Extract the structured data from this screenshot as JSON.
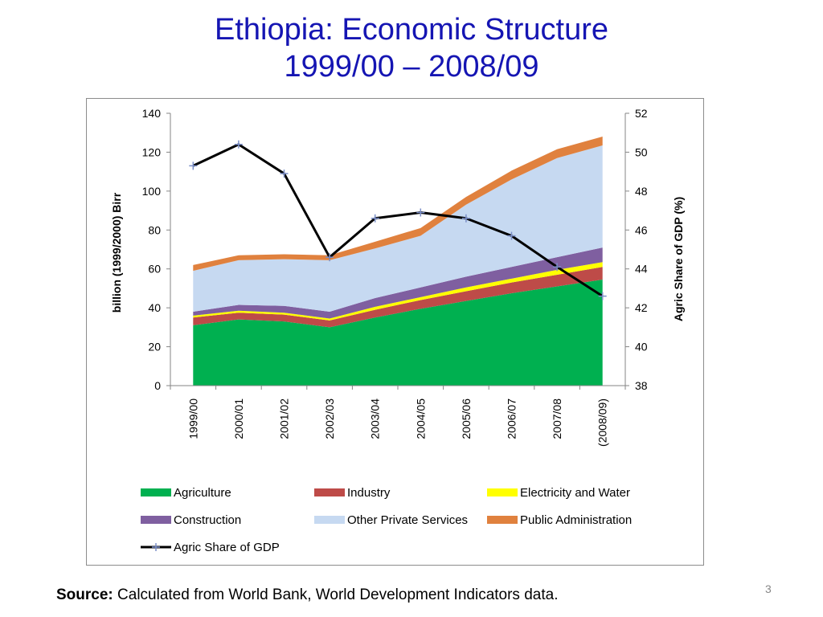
{
  "slide": {
    "title_line1": "Ethiopia: Economic Structure",
    "title_line2": "1999/00 – 2008/09",
    "source_label": "Source:",
    "source_text": "Calculated from World Bank, World Development Indicators data.",
    "page_number": "3"
  },
  "colors": {
    "title": "#1515b3",
    "Agriculture": "#00b050",
    "Industry": "#be4b48",
    "Electricity and  Water": "#ffff00",
    "Construction": "#7f5fa0",
    "Other Private Services": "#c6d9f1",
    "Public Administration": "#e0813e",
    "Agric Share of GDP": "#000000",
    "marker": "#7b8fc8"
  },
  "chart_data": {
    "type": "area",
    "categories": [
      "1999/00",
      "2000/01",
      "2001/02",
      "2002/03",
      "2003/04",
      "2004/05",
      "2005/06",
      "2006/07",
      "2007/08",
      "(2008/09)"
    ],
    "ylabel": "billion (1999/2000) Birr",
    "y2label": "Agric Share  of GDP (%)",
    "ylim": [
      0,
      140
    ],
    "yticks": [
      0,
      20,
      40,
      60,
      80,
      100,
      120,
      140
    ],
    "y2lim": [
      38,
      52
    ],
    "y2ticks": [
      38,
      40,
      42,
      44,
      46,
      48,
      50,
      52
    ],
    "stacked": true,
    "series": [
      {
        "name": "Agriculture",
        "values": [
          31,
          34,
          33,
          30,
          35,
          39.5,
          43.5,
          47.5,
          51,
          54.5
        ]
      },
      {
        "name": "Industry",
        "values": [
          4,
          3.5,
          3.5,
          3.5,
          4,
          4.5,
          5,
          5.5,
          6,
          6.5
        ]
      },
      {
        "name": "Electricity and  Water",
        "values": [
          1,
          1,
          1,
          1,
          1.5,
          1.5,
          2,
          2,
          2.5,
          2.5
        ]
      },
      {
        "name": "Construction",
        "values": [
          2,
          3,
          3.5,
          3.5,
          4.5,
          5,
          5.5,
          6,
          6.5,
          7.5
        ]
      },
      {
        "name": "Other Private Services",
        "values": [
          21,
          23,
          24,
          26.5,
          25.5,
          26.5,
          37,
          45,
          51,
          52.5
        ]
      },
      {
        "name": "Public Administration",
        "values": [
          3,
          2.5,
          2.5,
          2.5,
          3.5,
          4,
          4,
          4.5,
          4.5,
          4.5
        ]
      }
    ],
    "line_series": [
      {
        "name": "Agric Share of GDP",
        "axis": "right",
        "values": [
          49.3,
          50.4,
          48.9,
          44.6,
          46.6,
          46.9,
          46.6,
          45.7,
          44.1,
          42.6
        ]
      }
    ],
    "legend": {
      "placement": "bottom",
      "entries": [
        "Agriculture",
        "Industry",
        "Electricity and  Water",
        "Construction",
        "Other Private Services",
        "Public Administration",
        "Agric Share of GDP"
      ]
    },
    "grid": false
  }
}
